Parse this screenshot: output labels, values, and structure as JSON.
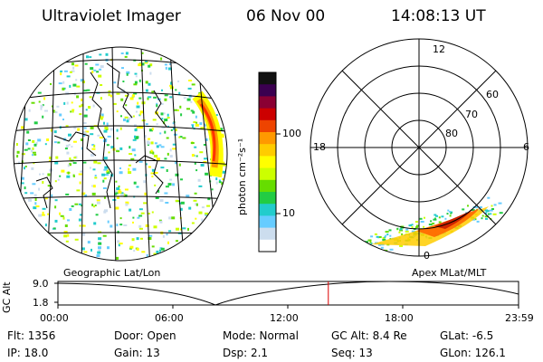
{
  "header": {
    "instrument": "Ultraviolet Imager",
    "date": "06 Nov 00",
    "time": "14:08:13 UT"
  },
  "colorbar": {
    "label": "photon cm⁻²s⁻¹",
    "ticks": [
      "100",
      "10"
    ],
    "scale": "log",
    "colors": [
      "#111111",
      "#3b0050",
      "#8a0033",
      "#cc0000",
      "#ee4400",
      "#ff9900",
      "#ffcc00",
      "#ffff00",
      "#ccff00",
      "#66dd00",
      "#22cc44",
      "#22cccc",
      "#66ccff",
      "#ccddee",
      "#ffffff"
    ]
  },
  "polar": {
    "mlt_labels": [
      "12",
      "18",
      "6",
      "0"
    ],
    "mlat_labels": [
      "60",
      "70",
      "80"
    ]
  },
  "panels": {
    "geographic_label": "Geographic Lat/Lon",
    "apex_label": "Apex MLat/MLT"
  },
  "altitude_plot": {
    "ylabel": "GC Alt",
    "y_ticks": [
      "9.0",
      "1.8"
    ],
    "x_ticks": [
      "00:00",
      "06:00",
      "12:00",
      "18:00",
      "23:59"
    ],
    "current_time_fraction": 0.587,
    "marker_color": "#dd0000"
  },
  "info": {
    "flt": "Flt: 1356",
    "ip": "IP: 18.0",
    "door": "Door: Open",
    "gain": "Gain: 13",
    "mode": "Mode: Normal",
    "dsp": "Dsp:     2.1",
    "gc_alt": "GC Alt: 8.4 Re",
    "seq": "Seq: 13",
    "glat": "GLat:   -6.5",
    "glon": "GLon: 126.1"
  }
}
